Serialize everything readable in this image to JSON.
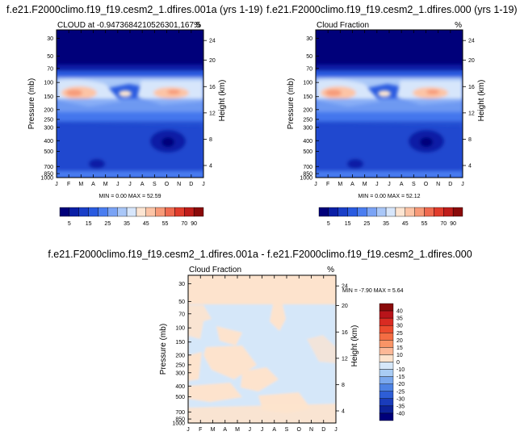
{
  "chart_data": [
    {
      "type": "heatmap",
      "title": "f.e21.F2000climo.f19_f19.cesm2_1.dfires.001a (yrs 1-19)",
      "subtitle_left": "CLOUD at -0.9473684210526301,167.5",
      "subtitle_right": "%",
      "ylabel": "Pressure (mb)",
      "ylabel_right": "Height (km)",
      "x_ticks": [
        "J",
        "F",
        "M",
        "A",
        "M",
        "J",
        "J",
        "A",
        "S",
        "O",
        "N",
        "D",
        "J"
      ],
      "y_ticks": [
        "30",
        "50",
        "70",
        "100",
        "150",
        "200",
        "250",
        "300",
        "400",
        "500",
        "700",
        "850",
        "1000"
      ],
      "y_ticks_right": [
        "24",
        "20",
        "16",
        "12",
        "8",
        "4"
      ],
      "stats": "MIN =   0.00 MAX =  52.59",
      "colorbar_labels": [
        "5",
        "15",
        "25",
        "35",
        "45",
        "55",
        "70",
        "90"
      ],
      "colors": [
        "#00007a",
        "#0a1fa6",
        "#1a3fc8",
        "#2a5be0",
        "#4a7df0",
        "#7aa3f5",
        "#a9c7f8",
        "#d7e6fb",
        "#fde5d2",
        "#fcc4a6",
        "#f79a78",
        "#ef6a4f",
        "#e03c2c",
        "#bf1d1a",
        "#8a0a0a"
      ],
      "min": 0.0,
      "max": 52.59
    },
    {
      "type": "heatmap",
      "title": "f.e21.F2000climo.f19_f19.cesm2_1.dfires.000 (yrs 1-19)",
      "subtitle_left": "Cloud Fraction",
      "subtitle_right": "%",
      "ylabel": "Pressure (mb)",
      "ylabel_right": "Height (km)",
      "x_ticks": [
        "J",
        "F",
        "M",
        "A",
        "M",
        "J",
        "J",
        "A",
        "S",
        "O",
        "N",
        "D",
        "J"
      ],
      "y_ticks": [
        "30",
        "50",
        "70",
        "100",
        "150",
        "200",
        "250",
        "300",
        "400",
        "500",
        "700",
        "850",
        "1000"
      ],
      "y_ticks_right": [
        "24",
        "20",
        "16",
        "12",
        "8",
        "4"
      ],
      "stats": "MIN =   0.00 MAX =  52.12",
      "colorbar_labels": [
        "5",
        "15",
        "25",
        "35",
        "45",
        "55",
        "70",
        "90"
      ],
      "min": 0.0,
      "max": 52.12
    },
    {
      "type": "heatmap",
      "title": "f.e21.F2000climo.f19_f19.cesm2_1.dfires.001a - f.e21.F2000climo.f19_f19.cesm2_1.dfires.000",
      "subtitle_left": "Cloud Fraction",
      "subtitle_right": "%",
      "ylabel": "Pressure (mb)",
      "ylabel_right": "Height (km)",
      "x_ticks": [
        "J",
        "F",
        "M",
        "A",
        "M",
        "J",
        "J",
        "A",
        "S",
        "O",
        "N",
        "D",
        "J"
      ],
      "y_ticks": [
        "30",
        "50",
        "70",
        "100",
        "150",
        "200",
        "250",
        "300",
        "400",
        "500",
        "700",
        "850",
        "1000"
      ],
      "y_ticks_right": [
        "24",
        "20",
        "16",
        "12",
        "8",
        "4"
      ],
      "stats": "MIN =  -7.90 MAX =   5.64",
      "colorbar_labels": [
        "40",
        "35",
        "30",
        "25",
        "20",
        "15",
        "10",
        "0",
        "-10",
        "-15",
        "-20",
        "-25",
        "-30",
        "-35",
        "-40"
      ],
      "colors": [
        "#8a0a0a",
        "#b8141a",
        "#d92b22",
        "#ec4b2e",
        "#f46d43",
        "#f99466",
        "#fcb897",
        "#fde3cd",
        "#d5e7f9",
        "#a9ccf4",
        "#7aa8ee",
        "#4d82e4",
        "#2e5ed6",
        "#1a3cbb",
        "#0d2299",
        "#00007a"
      ],
      "min": -7.9,
      "max": 5.64
    }
  ]
}
